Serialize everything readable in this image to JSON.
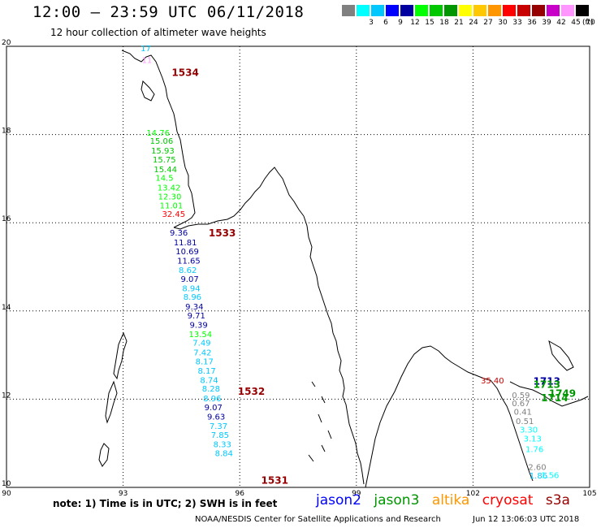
{
  "header": {
    "title": "12:00 – 23:59 UTC 06/11/2018",
    "subtitle": "12 hour collection of altimeter wave heights"
  },
  "color_scale": {
    "unit": "(ft)",
    "bins": [
      {
        "label": "",
        "color": "#808080"
      },
      {
        "label": "3",
        "color": "#00ffff"
      },
      {
        "label": "6",
        "color": "#00c8ff"
      },
      {
        "label": "9",
        "color": "#0000ff"
      },
      {
        "label": "12",
        "color": "#0000a0"
      },
      {
        "label": "15",
        "color": "#00ff00"
      },
      {
        "label": "18",
        "color": "#00c800"
      },
      {
        "label": "21",
        "color": "#009600"
      },
      {
        "label": "24",
        "color": "#ffff00"
      },
      {
        "label": "27",
        "color": "#ffc800"
      },
      {
        "label": "30",
        "color": "#ff9600"
      },
      {
        "label": "33",
        "color": "#ff0000"
      },
      {
        "label": "36",
        "color": "#c80000"
      },
      {
        "label": "39",
        "color": "#960000"
      },
      {
        "label": "42",
        "color": "#c800c8"
      },
      {
        "label": "45",
        "color": "#ff96ff"
      },
      {
        "label": "70",
        "color": "#000000"
      }
    ]
  },
  "map": {
    "lon_range": [
      90,
      105
    ],
    "lat_range": [
      10,
      20
    ],
    "lon_ticks": [
      "90",
      "93",
      "96",
      "99",
      "102",
      "105"
    ],
    "lat_ticks": [
      "20",
      "18",
      "16",
      "14",
      "12",
      "10"
    ]
  },
  "track_values": [
    {
      "text": "17",
      "lon": 93.45,
      "lat": 19.89,
      "color": "#00c8ff"
    },
    {
      "text": "11",
      "lon": 93.48,
      "lat": 19.62,
      "color": "#ff96ff"
    },
    {
      "text": "14.76",
      "lon": 93.6,
      "lat": 17.97,
      "color": "#00ff00"
    },
    {
      "text": "15.06",
      "lon": 93.69,
      "lat": 17.79,
      "color": "#00c800"
    },
    {
      "text": "15.93",
      "lon": 93.72,
      "lat": 17.57,
      "color": "#00c800"
    },
    {
      "text": "15.75",
      "lon": 93.76,
      "lat": 17.37,
      "color": "#00c800"
    },
    {
      "text": "15.44",
      "lon": 93.79,
      "lat": 17.15,
      "color": "#00c800"
    },
    {
      "text": "14.5",
      "lon": 93.83,
      "lat": 16.95,
      "color": "#00ff00"
    },
    {
      "text": "13.42",
      "lon": 93.88,
      "lat": 16.73,
      "color": "#00ff00"
    },
    {
      "text": "12.30",
      "lon": 93.9,
      "lat": 16.53,
      "color": "#00ff00"
    },
    {
      "text": "11.01",
      "lon": 93.94,
      "lat": 16.33,
      "color": "#00ff00"
    },
    {
      "text": "32.45",
      "lon": 94.0,
      "lat": 16.13,
      "color": "#ff0000"
    },
    {
      "text": "9.36",
      "lon": 94.2,
      "lat": 15.71,
      "color": "#0000a0"
    },
    {
      "text": "11.81",
      "lon": 94.3,
      "lat": 15.49,
      "color": "#0000a0"
    },
    {
      "text": "10.69",
      "lon": 94.35,
      "lat": 15.29,
      "color": "#0000a0"
    },
    {
      "text": "11.65",
      "lon": 94.39,
      "lat": 15.07,
      "color": "#0000a0"
    },
    {
      "text": "8.62",
      "lon": 94.43,
      "lat": 14.86,
      "color": "#00c8ff"
    },
    {
      "text": "9.07",
      "lon": 94.48,
      "lat": 14.66,
      "color": "#0000a0"
    },
    {
      "text": "8.94",
      "lon": 94.52,
      "lat": 14.45,
      "color": "#00c8ff"
    },
    {
      "text": "8.96",
      "lon": 94.55,
      "lat": 14.25,
      "color": "#00c8ff"
    },
    {
      "text": "9.34",
      "lon": 94.6,
      "lat": 14.03,
      "color": "#0000a0"
    },
    {
      "text": "9.71",
      "lon": 94.65,
      "lat": 13.83,
      "color": "#0000a0"
    },
    {
      "text": "9.39",
      "lon": 94.71,
      "lat": 13.62,
      "color": "#0000a0"
    },
    {
      "text": "13.54",
      "lon": 94.69,
      "lat": 13.41,
      "color": "#00ff00"
    },
    {
      "text": "7.49",
      "lon": 94.79,
      "lat": 13.21,
      "color": "#00c8ff"
    },
    {
      "text": "7.42",
      "lon": 94.81,
      "lat": 12.99,
      "color": "#00c8ff"
    },
    {
      "text": "8.17",
      "lon": 94.86,
      "lat": 12.79,
      "color": "#00c8ff"
    },
    {
      "text": "8.17",
      "lon": 94.92,
      "lat": 12.58,
      "color": "#00c8ff"
    },
    {
      "text": "8.74",
      "lon": 94.98,
      "lat": 12.37,
      "color": "#00c8ff"
    },
    {
      "text": "8.28",
      "lon": 95.03,
      "lat": 12.17,
      "color": "#00c8ff"
    },
    {
      "text": "8.96",
      "lon": 95.06,
      "lat": 11.95,
      "color": "#00c8ff"
    },
    {
      "text": "9.07",
      "lon": 95.09,
      "lat": 11.75,
      "color": "#0000a0"
    },
    {
      "text": "9.63",
      "lon": 95.16,
      "lat": 11.54,
      "color": "#0000a0"
    },
    {
      "text": "7.37",
      "lon": 95.22,
      "lat": 11.33,
      "color": "#00c8ff"
    },
    {
      "text": "7.85",
      "lon": 95.26,
      "lat": 11.12,
      "color": "#00c8ff"
    },
    {
      "text": "8.33",
      "lon": 95.32,
      "lat": 10.91,
      "color": "#00c8ff"
    },
    {
      "text": "8.84",
      "lon": 95.36,
      "lat": 10.71,
      "color": "#00c8ff"
    },
    {
      "text": "35.40",
      "lon": 102.2,
      "lat": 12.36,
      "color": "#c80000"
    },
    {
      "text": "0.59",
      "lon": 103.0,
      "lat": 12.03,
      "color": "#808080"
    },
    {
      "text": "0.67",
      "lon": 103.0,
      "lat": 11.84,
      "color": "#808080"
    },
    {
      "text": "0.41",
      "lon": 103.05,
      "lat": 11.65,
      "color": "#808080"
    },
    {
      "text": "0.51",
      "lon": 103.1,
      "lat": 11.44,
      "color": "#808080"
    },
    {
      "text": "3.30",
      "lon": 103.2,
      "lat": 11.24,
      "color": "#00ffff"
    },
    {
      "text": "3.13",
      "lon": 103.3,
      "lat": 11.04,
      "color": "#00ffff"
    },
    {
      "text": "1.76",
      "lon": 103.35,
      "lat": 10.8,
      "color": "#00ffff"
    },
    {
      "text": "2.60",
      "lon": 103.42,
      "lat": 10.4,
      "color": "#808080"
    },
    {
      "text": "1.86",
      "lon": 103.45,
      "lat": 10.2,
      "color": "#00c8ff"
    },
    {
      "text": "1.56",
      "lon": 103.75,
      "lat": 10.21,
      "color": "#00ffff"
    }
  ],
  "rev_labels": [
    {
      "text": "1534",
      "lon": 94.25,
      "lat": 19.33,
      "color": "#960000"
    },
    {
      "text": "1533",
      "lon": 95.2,
      "lat": 15.69,
      "color": "#960000"
    },
    {
      "text": "1532",
      "lon": 95.95,
      "lat": 12.1,
      "color": "#960000"
    },
    {
      "text": "1531",
      "lon": 96.55,
      "lat": 10.08,
      "color": "#960000"
    },
    {
      "text": "1713",
      "lon": 103.55,
      "lat": 12.33,
      "color": "#0000a0"
    },
    {
      "text": "1713",
      "lon": 103.55,
      "lat": 12.26,
      "color": "#009600"
    },
    {
      "text": "1749",
      "lon": 103.95,
      "lat": 12.05,
      "color": "#009600"
    },
    {
      "text": "1714",
      "lon": 103.75,
      "lat": 11.95,
      "color": "#009600"
    }
  ],
  "footer": {
    "note": "note: 1) Time is in UTC; 2) SWH is in feet",
    "missions": [
      {
        "name": "jason2",
        "color": "#0000ff"
      },
      {
        "name": "jason3",
        "color": "#009600"
      },
      {
        "name": "altika",
        "color": "#ff9600"
      },
      {
        "name": "cryosat",
        "color": "#ff0000"
      },
      {
        "name": "s3a",
        "color": "#960000"
      }
    ],
    "org": "NOAA/NESDIS Center for Satellite Applications and Research",
    "timestamp": "Jun 12 13:06:03 UTC 2018"
  }
}
